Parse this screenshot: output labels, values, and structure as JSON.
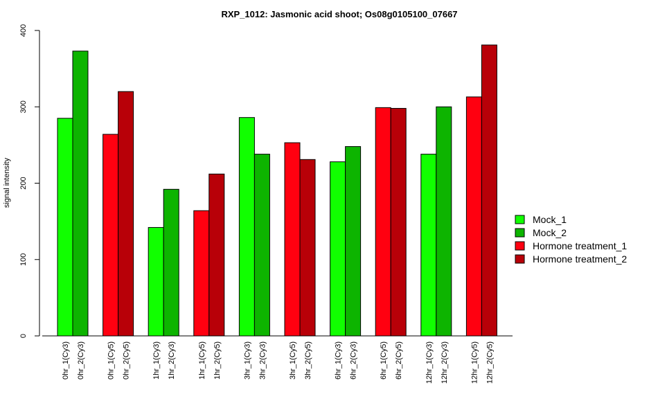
{
  "chart_data": {
    "type": "bar",
    "title": "RXP_1012: Jasmonic acid shoot; Os08g0105100_07667",
    "xlabel": "",
    "ylabel": "signal intensity",
    "ylim": [
      0,
      400
    ],
    "yticks": [
      0,
      100,
      200,
      300,
      400
    ],
    "groups": [
      {
        "bars": [
          {
            "label": "0hr_1(Cy3)",
            "value": 285,
            "series": 0
          },
          {
            "label": "0hr_2(Cy3)",
            "value": 373,
            "series": 1
          }
        ]
      },
      {
        "bars": [
          {
            "label": "0hr_1(Cy5)",
            "value": 264,
            "series": 2
          },
          {
            "label": "0hr_2(Cy5)",
            "value": 320,
            "series": 3
          }
        ]
      },
      {
        "bars": [
          {
            "label": "1hr_1(Cy3)",
            "value": 142,
            "series": 0
          },
          {
            "label": "1hr_2(Cy3)",
            "value": 192,
            "series": 1
          }
        ]
      },
      {
        "bars": [
          {
            "label": "1hr_1(Cy5)",
            "value": 164,
            "series": 2
          },
          {
            "label": "1hr_2(Cy5)",
            "value": 212,
            "series": 3
          }
        ]
      },
      {
        "bars": [
          {
            "label": "3hr_1(Cy3)",
            "value": 286,
            "series": 0
          },
          {
            "label": "3hr_2(Cy3)",
            "value": 238,
            "series": 1
          }
        ]
      },
      {
        "bars": [
          {
            "label": "3hr_1(Cy5)",
            "value": 253,
            "series": 2
          },
          {
            "label": "3hr_2(Cy5)",
            "value": 231,
            "series": 3
          }
        ]
      },
      {
        "bars": [
          {
            "label": "6hr_1(Cy3)",
            "value": 228,
            "series": 0
          },
          {
            "label": "6hr_2(Cy3)",
            "value": 248,
            "series": 1
          }
        ]
      },
      {
        "bars": [
          {
            "label": "6hr_1(Cy5)",
            "value": 299,
            "series": 2
          },
          {
            "label": "6hr_2(Cy5)",
            "value": 298,
            "series": 3
          }
        ]
      },
      {
        "bars": [
          {
            "label": "12hr_1(Cy3)",
            "value": 238,
            "series": 0
          },
          {
            "label": "12hr_2(Cy3)",
            "value": 300,
            "series": 1
          }
        ]
      },
      {
        "bars": [
          {
            "label": "12hr_1(Cy5)",
            "value": 313,
            "series": 2
          },
          {
            "label": "12hr_2(Cy5)",
            "value": 381,
            "series": 3
          }
        ]
      }
    ],
    "series": [
      {
        "name": "Mock_1",
        "color": "#11ff00"
      },
      {
        "name": "Mock_2",
        "color": "#0db400"
      },
      {
        "name": "Hormone treatment_1",
        "color": "#ff0010"
      },
      {
        "name": "Hormone treatment_2",
        "color": "#b80008"
      }
    ],
    "legend_position": "right",
    "grid": false
  }
}
